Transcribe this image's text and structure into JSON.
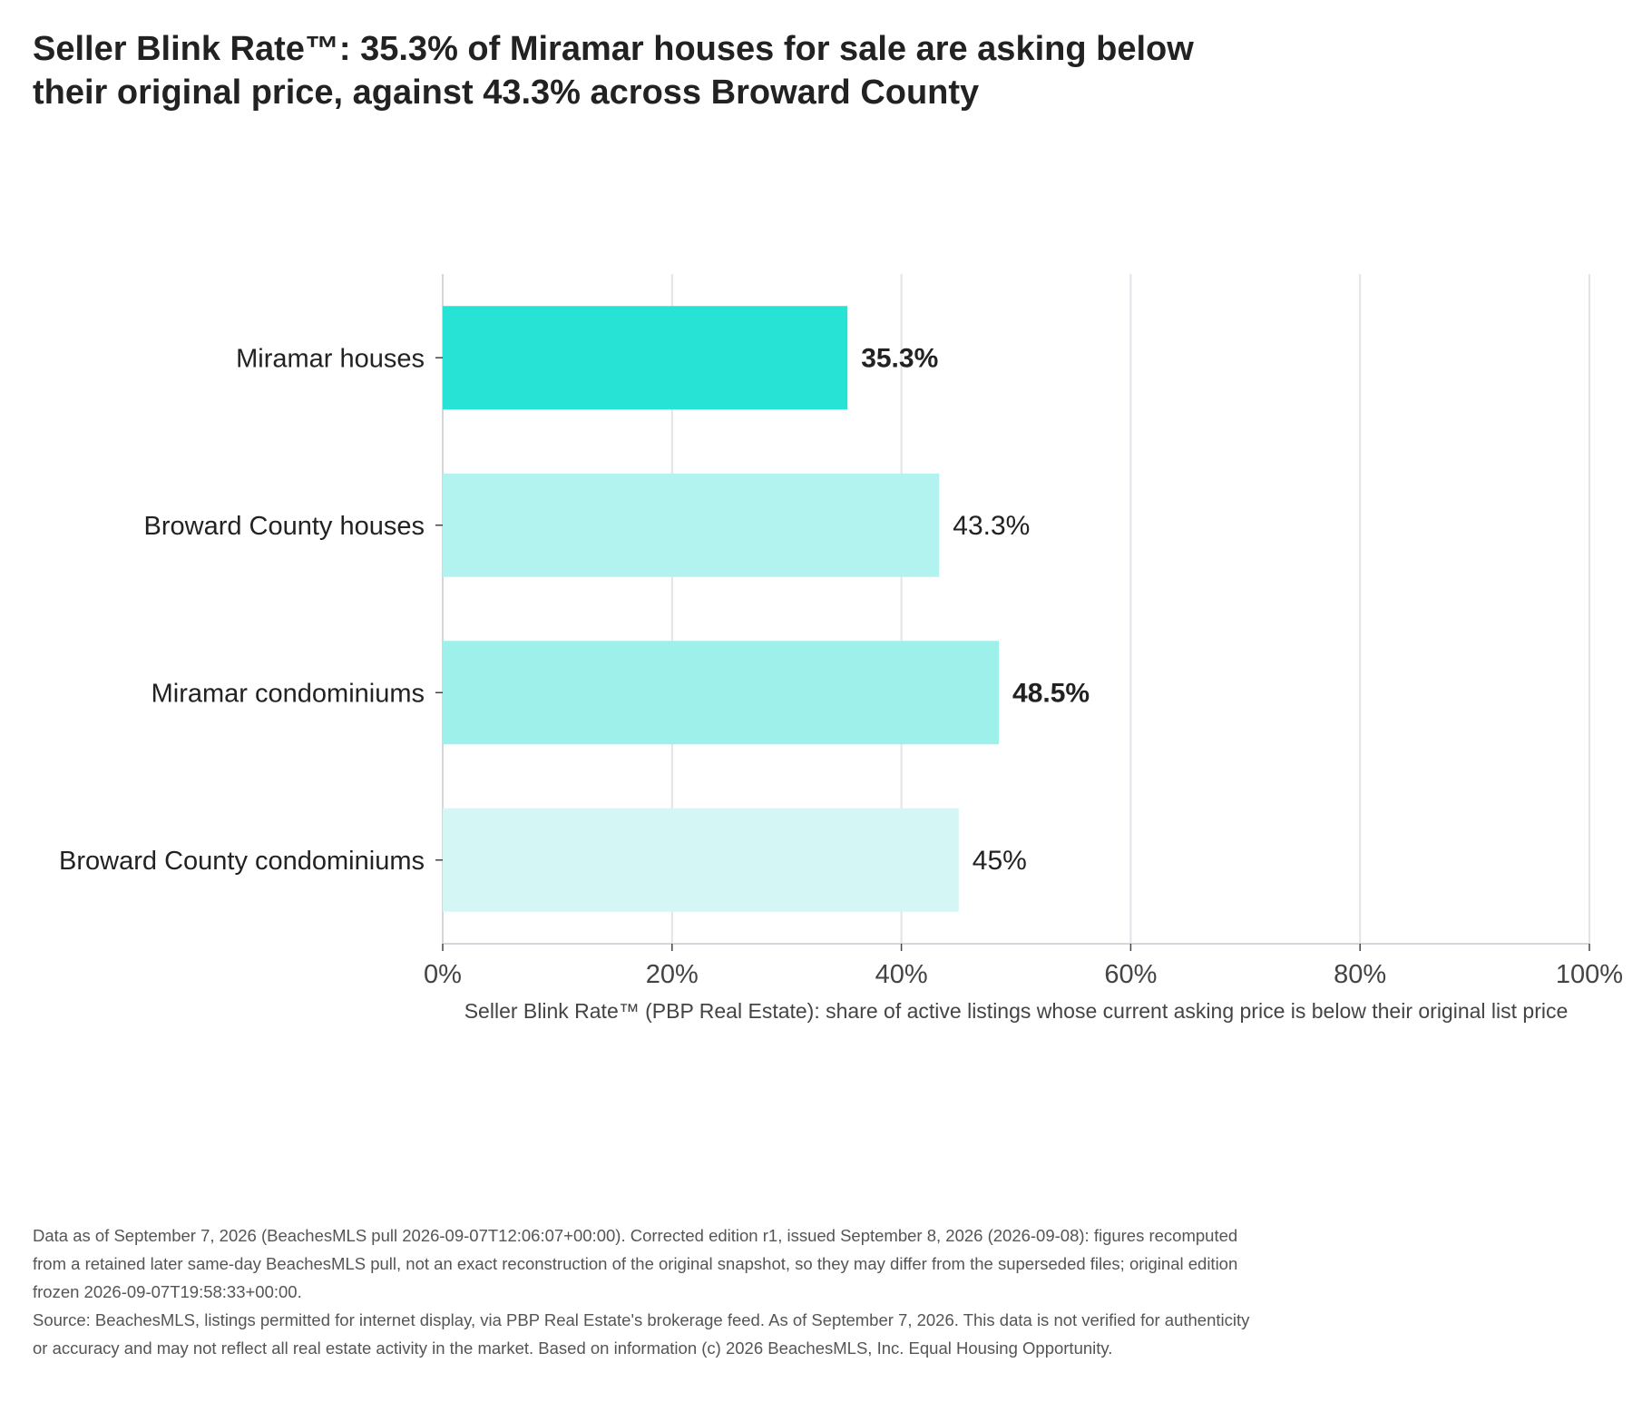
{
  "chart_data": {
    "type": "bar",
    "orientation": "horizontal",
    "title": "Seller Blink Rate™: 35.3% of Miramar houses for sale are asking below their original price, against 43.3% across Broward County",
    "categories": [
      "Miramar houses",
      "Broward County houses",
      "Miramar condominiums",
      "Broward County condominiums"
    ],
    "values": [
      35.3,
      43.3,
      48.5,
      45
    ],
    "value_labels": [
      "35.3%",
      "43.3%",
      "48.5%",
      "45%"
    ],
    "bold_labels": [
      true,
      false,
      true,
      false
    ],
    "bar_colors": [
      "#26e3d6",
      "#b3f3ef",
      "#9ef0eb",
      "#d4f7f5"
    ],
    "xlabel": "Seller Blink Rate™ (PBP Real Estate): share of active listings whose current asking price is below their original list price",
    "ylabel": "",
    "xlim": [
      0,
      100
    ],
    "xticks": [
      0,
      20,
      40,
      60,
      80,
      100
    ],
    "xtick_labels": [
      "0%",
      "20%",
      "40%",
      "60%",
      "80%",
      "100%"
    ],
    "grid": true
  },
  "footer": {
    "note": "Data as of September 7, 2026 (BeachesMLS pull 2026-09-07T12:06:07+00:00). Corrected edition r1, issued September 8, 2026 (2026-09-08): figures recomputed from a retained later same-day BeachesMLS pull, not an exact reconstruction of the original snapshot, so they may differ from the superseded files; original edition frozen 2026-09-07T19:58:33+00:00.",
    "source": "Source: BeachesMLS, listings permitted for internet display, via PBP Real Estate's brokerage feed. As of September 7, 2026. This data is not verified for authenticity or accuracy and may not reflect all real estate activity in the market. Based on information (c) 2026 BeachesMLS, Inc. Equal Housing Opportunity."
  }
}
